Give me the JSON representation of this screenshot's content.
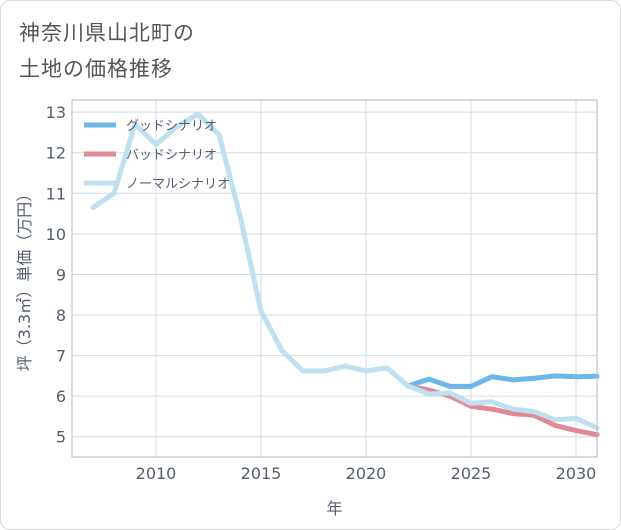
{
  "title_lines": [
    "神奈川県山北町の",
    "土地の価格推移"
  ],
  "chart_data": {
    "type": "line",
    "xlabel": "年",
    "ylabel": "坪（3.3㎡）単価（万円）",
    "xlim": [
      2006,
      2031
    ],
    "ylim": [
      4.5,
      13.3
    ],
    "xticks": [
      2010,
      2015,
      2020,
      2025,
      2030
    ],
    "yticks": [
      5,
      6,
      7,
      8,
      9,
      10,
      11,
      12,
      13
    ],
    "grid": true,
    "legend_position": "top-left",
    "series": [
      {
        "name": "グッドシナリオ",
        "color": "#6cb6ea",
        "points": [
          [
            2022,
            6.25
          ],
          [
            2023,
            6.42
          ],
          [
            2024,
            6.24
          ],
          [
            2025,
            6.24
          ],
          [
            2026,
            6.48
          ],
          [
            2027,
            6.4
          ],
          [
            2028,
            6.44
          ],
          [
            2029,
            6.5
          ],
          [
            2030,
            6.48
          ],
          [
            2031,
            6.49
          ]
        ]
      },
      {
        "name": "バッドシナリオ",
        "color": "#e08a93",
        "points": [
          [
            2022,
            6.25
          ],
          [
            2023,
            6.15
          ],
          [
            2024,
            6.0
          ],
          [
            2025,
            5.75
          ],
          [
            2026,
            5.68
          ],
          [
            2027,
            5.57
          ],
          [
            2028,
            5.53
          ],
          [
            2029,
            5.28
          ],
          [
            2030,
            5.15
          ],
          [
            2031,
            5.05
          ]
        ]
      },
      {
        "name": "ノーマルシナリオ",
        "color": "#bfe0f0",
        "points": [
          [
            2007,
            10.65
          ],
          [
            2008,
            11.0
          ],
          [
            2009,
            12.7
          ],
          [
            2010,
            12.2
          ],
          [
            2011,
            12.65
          ],
          [
            2012,
            12.95
          ],
          [
            2013,
            12.45
          ],
          [
            2014,
            10.45
          ],
          [
            2015,
            8.1
          ],
          [
            2016,
            7.12
          ],
          [
            2017,
            6.62
          ],
          [
            2018,
            6.62
          ],
          [
            2019,
            6.74
          ],
          [
            2020,
            6.62
          ],
          [
            2021,
            6.7
          ],
          [
            2022,
            6.25
          ],
          [
            2023,
            6.05
          ],
          [
            2024,
            6.08
          ],
          [
            2025,
            5.82
          ],
          [
            2026,
            5.86
          ],
          [
            2027,
            5.68
          ],
          [
            2028,
            5.62
          ],
          [
            2029,
            5.42
          ],
          [
            2030,
            5.45
          ],
          [
            2031,
            5.22
          ]
        ]
      }
    ]
  }
}
